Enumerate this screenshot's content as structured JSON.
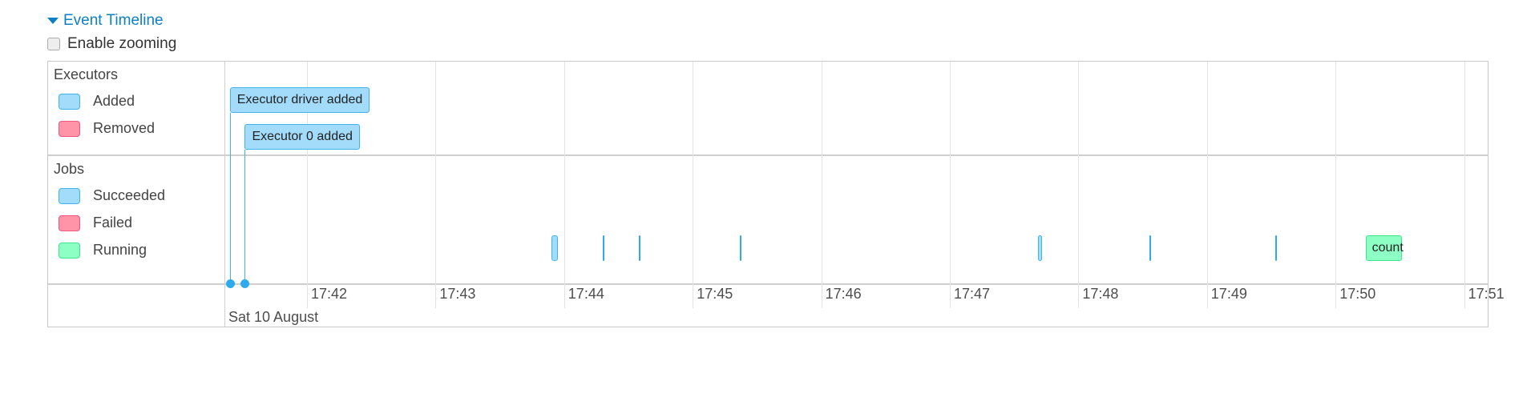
{
  "header": {
    "title": "Event Timeline",
    "zoom_label": "Enable zooming",
    "zoom_checked": false
  },
  "colors": {
    "link": "#0d7fc4",
    "added": "#a3dcfb",
    "removed": "#ff94a8",
    "running": "#8dffc4",
    "succeeded": "#a3dcfb",
    "failed": "#ff94a8"
  },
  "legend": {
    "executors": {
      "title": "Executors",
      "items": [
        {
          "label": "Added",
          "color": "#a3dcfb",
          "border": "#3eb3f0"
        },
        {
          "label": "Removed",
          "color": "#ff94a8",
          "border": "#f2557a"
        }
      ]
    },
    "jobs": {
      "title": "Jobs",
      "items": [
        {
          "label": "Succeeded",
          "color": "#a3dcfb",
          "border": "#3eb3f0"
        },
        {
          "label": "Failed",
          "color": "#ff94a8",
          "border": "#f2557a"
        },
        {
          "label": "Running",
          "color": "#8dffc4",
          "border": "#3de68a"
        }
      ]
    }
  },
  "axis": {
    "date": "Sat 10 August",
    "ticks": [
      "17:42",
      "17:43",
      "17:44",
      "17:45",
      "17:46",
      "17:47",
      "17:48",
      "17:49",
      "17:50",
      "17:51"
    ]
  },
  "executor_events": [
    {
      "label": "Executor driver added",
      "time": "17:41:24",
      "status": "added"
    },
    {
      "label": "Executor 0 added",
      "time": "17:41:31",
      "status": "added"
    }
  ],
  "jobs": [
    {
      "start": "17:43:54",
      "end": "17:43:57",
      "status": "succeeded",
      "label": ""
    },
    {
      "start": "17:44:18",
      "end": "17:44:18",
      "status": "succeeded",
      "label": ""
    },
    {
      "start": "17:44:35",
      "end": "17:44:35",
      "status": "succeeded",
      "label": ""
    },
    {
      "start": "17:45:22",
      "end": "17:45:22",
      "status": "succeeded",
      "label": ""
    },
    {
      "start": "17:47:41",
      "end": "17:47:43",
      "status": "succeeded",
      "label": ""
    },
    {
      "start": "17:48:33",
      "end": "17:48:33",
      "status": "succeeded",
      "label": ""
    },
    {
      "start": "17:49:32",
      "end": "17:49:32",
      "status": "succeeded",
      "label": ""
    },
    {
      "start": "17:50:14",
      "end": "17:50:31",
      "status": "running",
      "label": "count"
    }
  ]
}
